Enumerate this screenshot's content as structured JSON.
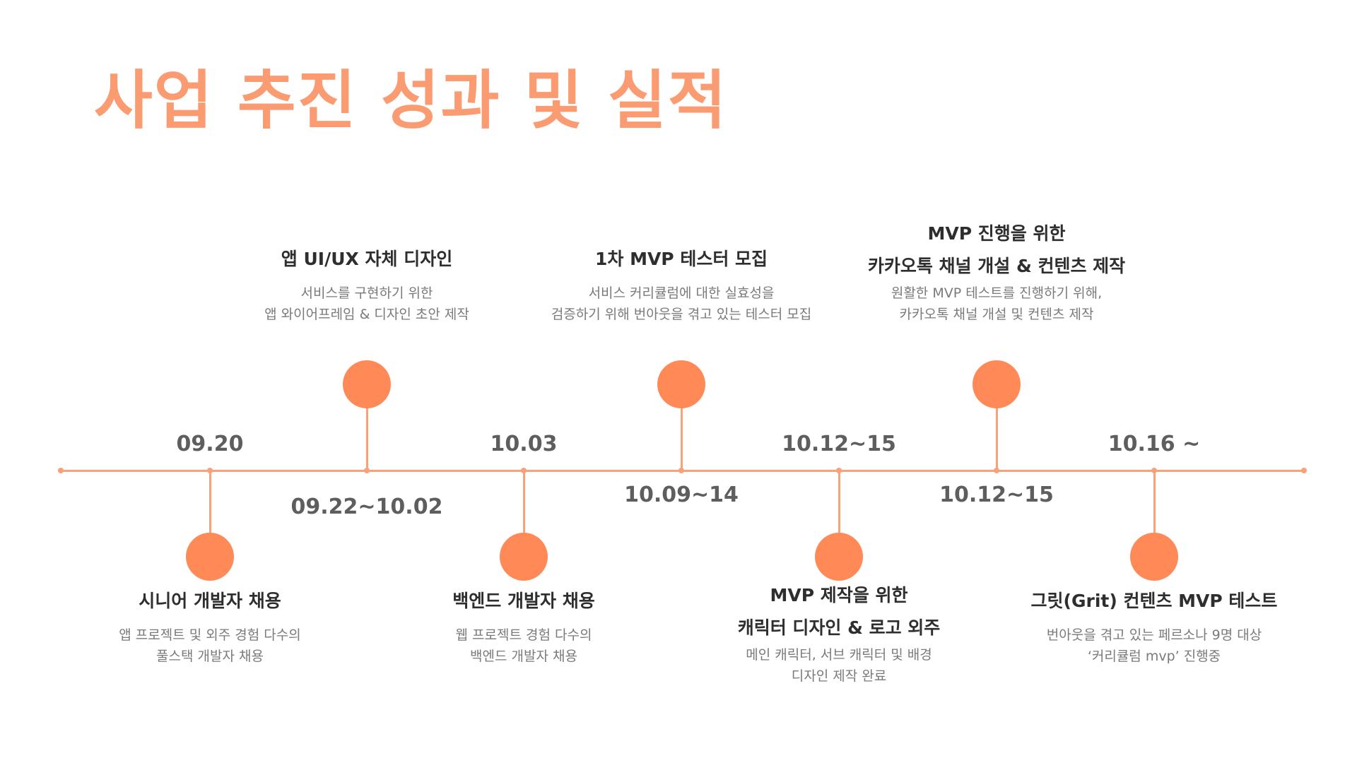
{
  "title": "사업 추진 성과 및 실적",
  "colors": {
    "title": "#FB9B72",
    "accent": "#FF8A58",
    "line": "#F9A279",
    "date_text": "#5E5E5E",
    "heading_text": "#2E2E2E",
    "body_text": "#7A7A7A"
  },
  "milestones": [
    {
      "date": "09.20",
      "title_lines": [
        "시니어 개발자 채용"
      ],
      "desc_lines": [
        "앱 프로젝트 및 외주 경험 다수의",
        "풀스택 개발자 채용"
      ]
    },
    {
      "date": "09.22~10.02",
      "title_lines": [
        "앱 UI/UX 자체 디자인"
      ],
      "desc_lines": [
        "서비스를 구현하기 위한",
        "앱 와이어프레임 & 디자인 초안 제작"
      ]
    },
    {
      "date": "10.03",
      "title_lines": [
        "백엔드 개발자 채용"
      ],
      "desc_lines": [
        "웹 프로젝트 경험 다수의",
        "백엔드 개발자 채용"
      ]
    },
    {
      "date": "10.09~14",
      "title_lines": [
        "1차 MVP 테스터 모집"
      ],
      "desc_lines": [
        "서비스 커리큘럼에 대한 실효성을",
        "검증하기 위해 번아웃을 겪고 있는 테스터 모집"
      ]
    },
    {
      "date": "10.12~15",
      "title_lines": [
        "MVP 제작을 위한",
        "캐릭터 디자인 & 로고 외주"
      ],
      "desc_lines": [
        "메인 캐릭터, 서브 캐릭터 및 배경",
        "디자인 제작 완료"
      ]
    },
    {
      "date": "10.12~15",
      "title_lines": [
        "MVP 진행을 위한",
        "카카오톡 채널 개설 & 컨텐츠 제작"
      ],
      "desc_lines": [
        "원활한 MVP 테스트를 진행하기 위해,",
        "카카오톡 채널 개설 및 컨텐츠 제작"
      ]
    },
    {
      "date": "10.16 ~",
      "title_lines": [
        "그릿(Grit) 컨텐츠 MVP 테스트"
      ],
      "desc_lines": [
        "번아웃을 겪고 있는 페르소나 9명 대상",
        "‘커리큘럼 mvp’ 진행중"
      ]
    }
  ]
}
